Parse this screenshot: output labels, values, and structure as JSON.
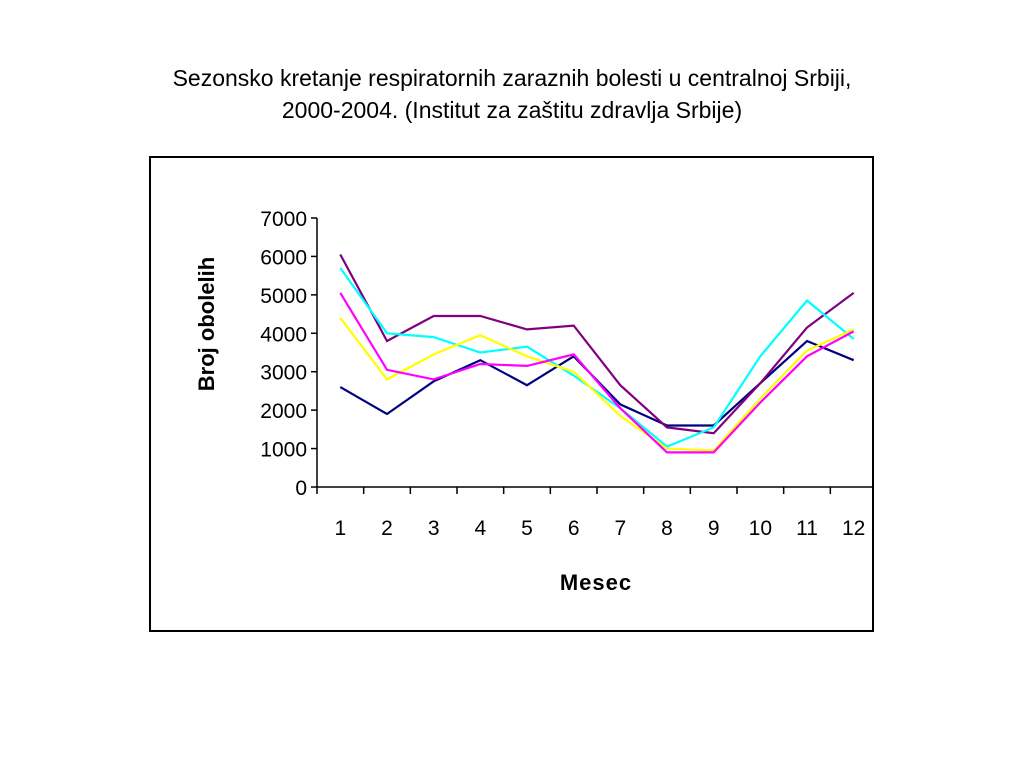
{
  "slide": {
    "title_line1": "Sezonsko kretanje respiratornih zaraznih bolesti u centralnoj Srbiji,",
    "title_line2": "2000-2004. (Institut za zaštitu zdravlja Srbije)"
  },
  "chart_data": {
    "type": "line",
    "title": "",
    "xlabel": "Mesec",
    "ylabel": "Broj obolelih",
    "x": [
      1,
      2,
      3,
      4,
      5,
      6,
      7,
      8,
      9,
      10,
      11,
      12
    ],
    "ylim": [
      0,
      7000
    ],
    "yticks": [
      0,
      1000,
      2000,
      3000,
      4000,
      5000,
      6000,
      7000
    ],
    "grid": false,
    "legend": "none",
    "series": [
      {
        "color": "#000080",
        "values": [
          2600,
          1900,
          2750,
          3300,
          2650,
          3400,
          2150,
          1600,
          1600,
          2700,
          3800,
          3300
        ]
      },
      {
        "color": "#800080",
        "values": [
          6050,
          3800,
          4450,
          4450,
          4100,
          4200,
          2650,
          1550,
          1400,
          2700,
          4150,
          5050
        ]
      },
      {
        "color": "#00FFFF",
        "values": [
          5700,
          4000,
          3900,
          3500,
          3650,
          2900,
          2050,
          1050,
          1550,
          3400,
          4850,
          3850
        ]
      },
      {
        "color": "#FFFF00",
        "values": [
          4400,
          2800,
          3450,
          3950,
          3400,
          3000,
          1850,
          1000,
          950,
          2300,
          3550,
          4100
        ]
      },
      {
        "color": "#FF00FF",
        "values": [
          5050,
          3050,
          2800,
          3200,
          3150,
          3450,
          2050,
          900,
          900,
          2200,
          3400,
          4050
        ]
      }
    ]
  }
}
